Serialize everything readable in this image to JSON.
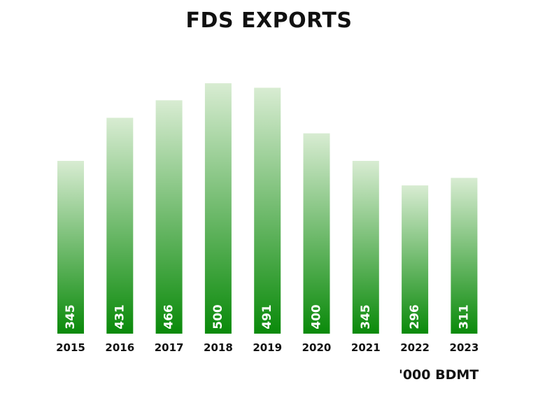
{
  "chart_data": {
    "type": "bar",
    "title": "FDS EXPORTS",
    "unit_label": "'000 BDMT",
    "categories": [
      "2015",
      "2016",
      "2017",
      "2018",
      "2019",
      "2020",
      "2021",
      "2022",
      "2023"
    ],
    "values": [
      345,
      431,
      466,
      500,
      491,
      400,
      345,
      296,
      311
    ],
    "xlabel": "",
    "ylabel": "",
    "ylim": [
      0,
      500
    ],
    "grid": false,
    "legend": "none",
    "colors": {
      "bar_top": "#d8ecd2",
      "bar_bottom": "#0a8a0a",
      "value_label": "#ffffff",
      "text": "#111111"
    }
  }
}
